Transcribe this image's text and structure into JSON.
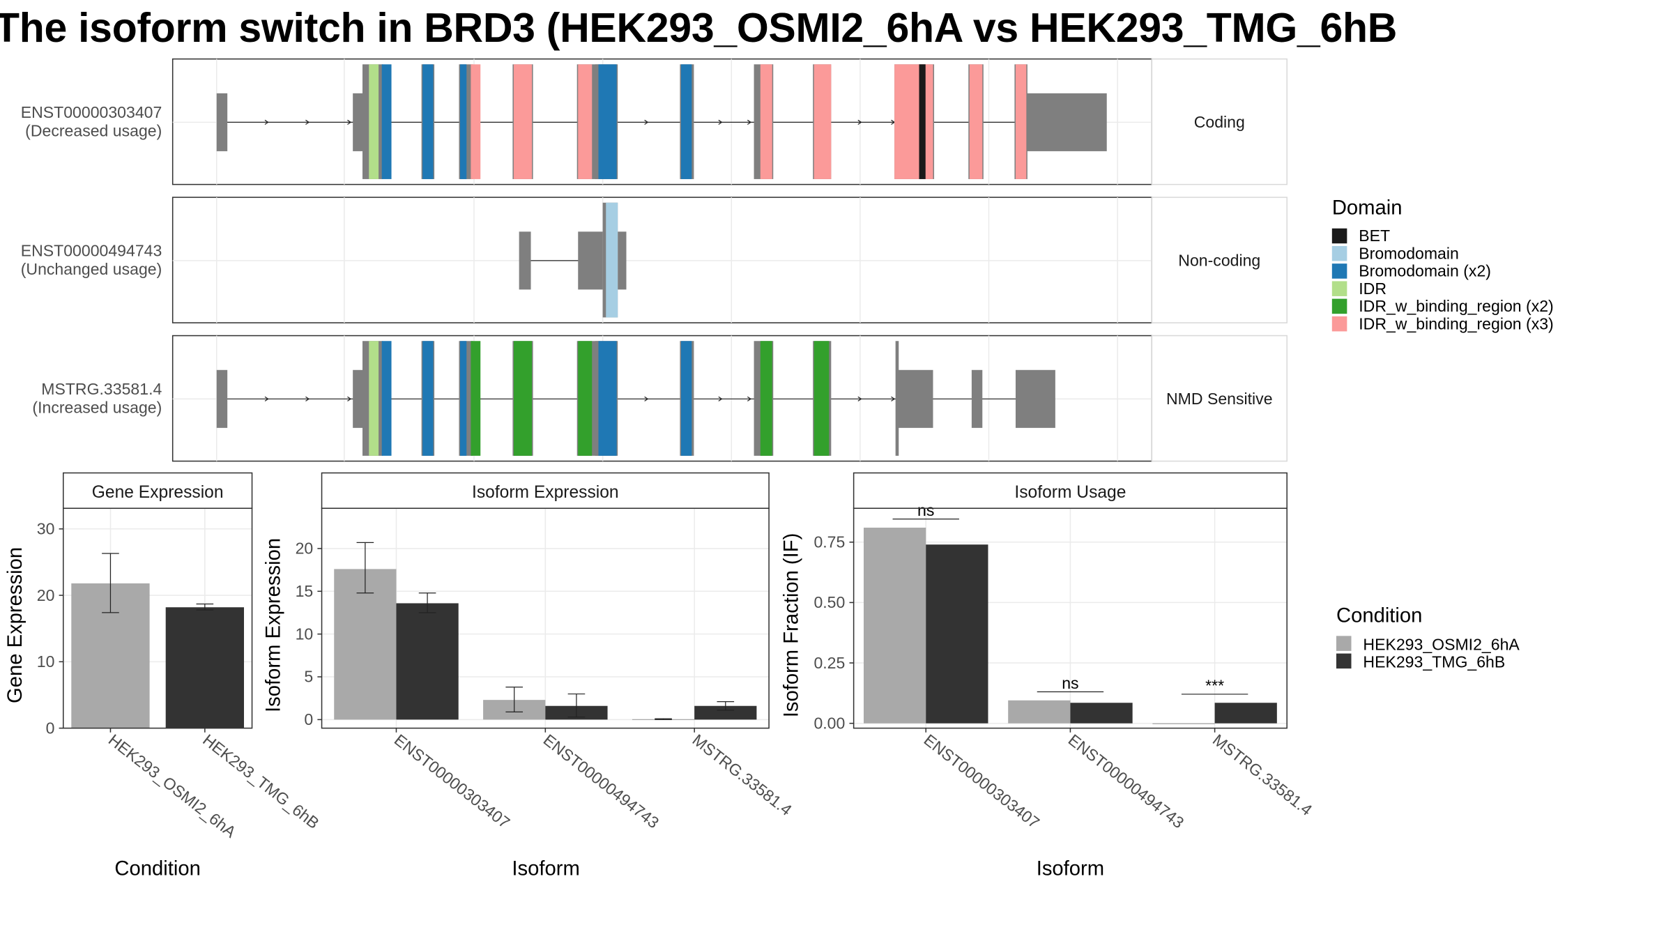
{
  "title": "The isoform switch in BRD3 (HEK293_OSMI2_6hA vs HEK293_TMG_6hB",
  "colors": {
    "BET": "#1a1a1a",
    "Bromodomain": "#a6cee3",
    "Bromodomain (x2)": "#1f78b4",
    "IDR": "#b2df8a",
    "IDR_w_binding_region (x2)": "#33a02c",
    "IDR_w_binding_region (x3)": "#fb9a99",
    "exon": "#7f7f7f",
    "cond_A": "#a9a9a9",
    "cond_B": "#333333"
  },
  "tracks": [
    {
      "name": "ENST00000303407",
      "usage": "(Decreased usage)",
      "strip": "Coding",
      "noncoding_exons": [
        [
          202,
          212
        ],
        [
          956,
          1032
        ]
      ],
      "coding_span": [
        329,
        957
      ],
      "domains": [
        {
          "d": "IDR",
          "s": 344,
          "e": 353
        },
        {
          "d": "Bromodomain (x2)",
          "s": 356,
          "e": 365
        },
        {
          "d": "Bromodomain (x2)",
          "s": 394,
          "e": 404
        },
        {
          "d": "Bromodomain (x2)",
          "s": 429,
          "e": 435
        },
        {
          "d": "IDR_w_binding_region (x3)",
          "s": 439,
          "e": 448
        },
        {
          "d": "IDR_w_binding_region (x3)",
          "s": 479,
          "e": 496
        },
        {
          "d": "IDR_w_binding_region (x3)",
          "s": 539,
          "e": 552
        },
        {
          "d": "Bromodomain (x2)",
          "s": 558,
          "e": 575
        },
        {
          "d": "Bromodomain (x2)",
          "s": 635,
          "e": 645
        },
        {
          "d": "IDR_w_binding_region (x3)",
          "s": 709,
          "e": 720
        },
        {
          "d": "IDR_w_binding_region (x3)",
          "s": 759,
          "e": 775
        },
        {
          "d": "IDR_w_binding_region (x3)",
          "s": 834,
          "e": 870
        },
        {
          "d": "BET",
          "s": 857,
          "e": 863
        },
        {
          "d": "IDR_w_binding_region (x3)",
          "s": 904,
          "e": 916
        },
        {
          "d": "IDR_w_binding_region (x3)",
          "s": 947,
          "e": 957
        }
      ],
      "intron": [
        207,
        995
      ],
      "arrows": [
        250,
        288,
        327,
        604,
        673,
        700,
        803,
        834
      ]
    },
    {
      "name": "ENST00000494743",
      "usage": "(Unchanged usage)",
      "strip": "Non-coding",
      "noncoding_exons": [
        [
          484,
          495
        ],
        [
          539,
          562
        ],
        [
          576,
          584
        ]
      ],
      "coding_span": [
        562,
        576
      ],
      "domains": [
        {
          "d": "Bromodomain",
          "s": 565,
          "e": 576
        }
      ],
      "intron": [
        489,
        560
      ],
      "arrows": []
    },
    {
      "name": "MSTRG.33581.4",
      "usage": "(Increased usage)",
      "strip": "NMD Sensitive",
      "noncoding_exons": [
        [
          202,
          212
        ],
        [
          836,
          870
        ],
        [
          906,
          916
        ],
        [
          947,
          984
        ]
      ],
      "coding_span": [
        329,
        837
      ],
      "domains": [
        {
          "d": "IDR",
          "s": 344,
          "e": 353
        },
        {
          "d": "Bromodomain (x2)",
          "s": 356,
          "e": 365
        },
        {
          "d": "Bromodomain (x2)",
          "s": 394,
          "e": 404
        },
        {
          "d": "Bromodomain (x2)",
          "s": 429,
          "e": 435
        },
        {
          "d": "IDR_w_binding_region (x2)",
          "s": 439,
          "e": 448
        },
        {
          "d": "IDR_w_binding_region (x2)",
          "s": 479,
          "e": 496
        },
        {
          "d": "IDR_w_binding_region (x2)",
          "s": 539,
          "e": 552
        },
        {
          "d": "Bromodomain (x2)",
          "s": 558,
          "e": 575
        },
        {
          "d": "Bromodomain (x2)",
          "s": 635,
          "e": 645
        },
        {
          "d": "IDR_w_binding_region (x2)",
          "s": 709,
          "e": 720
        },
        {
          "d": "IDR_w_binding_region (x2)",
          "s": 759,
          "e": 773
        }
      ],
      "intron": [
        207,
        965
      ],
      "arrows": [
        250,
        288,
        327,
        604,
        673,
        700,
        803,
        834
      ]
    }
  ],
  "legend_domain": {
    "title": "Domain",
    "items": [
      "BET",
      "Bromodomain",
      "Bromodomain (x2)",
      "IDR",
      "IDR_w_binding_region (x2)",
      "IDR_w_binding_region (x3)"
    ]
  },
  "legend_condition": {
    "title": "Condition",
    "items": [
      "HEK293_OSMI2_6hA",
      "HEK293_TMG_6hB"
    ]
  },
  "chart_data": [
    {
      "type": "bar",
      "title": "Gene Expression",
      "xlabel": "Condition",
      "ylabel": "Gene Expression",
      "categories": [
        "HEK293_OSMI2_6hA",
        "HEK293_TMG_6hB"
      ],
      "values": [
        21.8,
        18.2
      ],
      "err_low": [
        17.4,
        17.8
      ],
      "err_high": [
        26.3,
        18.7
      ],
      "ylim": [
        0,
        33.1
      ],
      "yticks": [
        0,
        10,
        20,
        30
      ]
    },
    {
      "type": "bar",
      "title": "Isoform Expression",
      "xlabel": "Isoform",
      "ylabel": "Isoform Expression",
      "categories": [
        "ENST00000303407",
        "ENST00000494743",
        "MSTRG.33581.4"
      ],
      "series": [
        {
          "name": "HEK293_OSMI2_6hA",
          "values": [
            17.6,
            2.3,
            0.05
          ],
          "err_low": [
            14.8,
            0.9,
            0.0
          ],
          "err_high": [
            20.7,
            3.8,
            0.1
          ]
        },
        {
          "name": "HEK293_TMG_6hB",
          "values": [
            13.6,
            1.6,
            1.6
          ],
          "err_low": [
            12.5,
            0.3,
            1.1
          ],
          "err_high": [
            14.8,
            3.0,
            2.1
          ]
        }
      ],
      "ylim": [
        -1.0,
        24.7
      ],
      "yticks": [
        0,
        5,
        10,
        15,
        20
      ]
    },
    {
      "type": "bar",
      "title": "Isoform Usage",
      "xlabel": "Isoform",
      "ylabel": "Isoform Fraction (IF)",
      "categories": [
        "ENST00000303407",
        "ENST00000494743",
        "MSTRG.33581.4"
      ],
      "series": [
        {
          "name": "HEK293_OSMI2_6hA",
          "values": [
            0.81,
            0.095,
            0.0
          ]
        },
        {
          "name": "HEK293_TMG_6hB",
          "values": [
            0.74,
            0.085,
            0.085
          ]
        }
      ],
      "significance": [
        "ns",
        "ns",
        "***"
      ],
      "ylim": [
        -0.02,
        0.89
      ],
      "yticks": [
        "0.00",
        "0.25",
        "0.50",
        "0.75"
      ]
    }
  ]
}
